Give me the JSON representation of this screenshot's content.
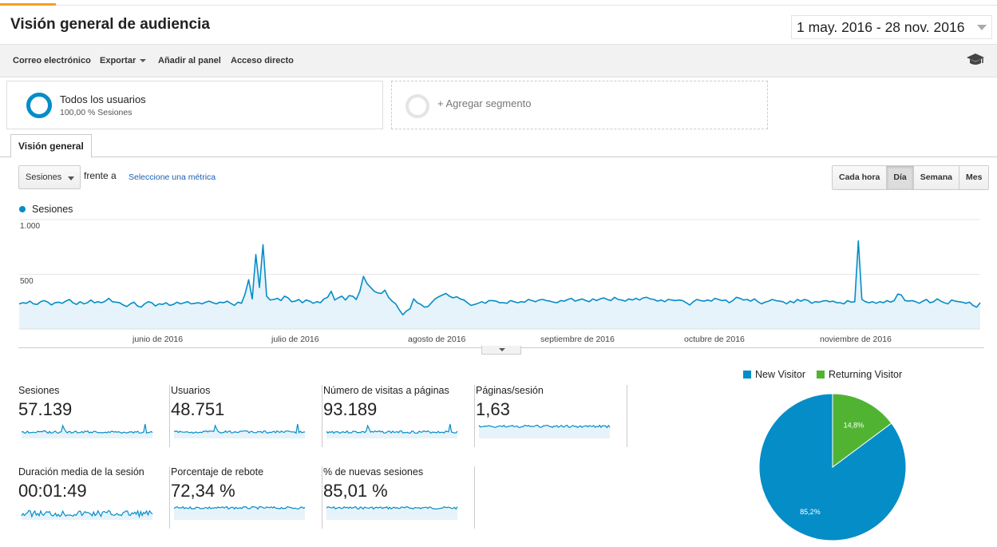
{
  "header": {
    "title": "Visión general de audiencia",
    "date_range": "1 may. 2016 - 28 nov. 2016"
  },
  "toolbar": {
    "email": "Correo electrónico",
    "export": "Exportar",
    "add_to_dashboard": "Añadir al panel",
    "shortcut": "Acceso directo",
    "help_icon": "graduation-cap-icon"
  },
  "segments": {
    "all_users_title": "Todos los usuarios",
    "all_users_sub": "100,00 % Sesiones",
    "add_segment": "+ Agregar segmento"
  },
  "tabs": [
    "Visión general"
  ],
  "controls": {
    "metric_select": "Sesiones",
    "versus": "frente a",
    "select_metric": "Seleccione una métrica",
    "granularity": [
      "Cada hora",
      "Día",
      "Semana",
      "Mes"
    ],
    "granularity_active": "Día"
  },
  "colors": {
    "primary": "#058dc7",
    "secondary": "#50b432",
    "area_fill": "#e6f3fa"
  },
  "chart_data": {
    "type": "area",
    "legend": "Sesiones",
    "y_ticks": [
      "1.000",
      "500"
    ],
    "ylim": [
      0,
      1000
    ],
    "x_ticks": [
      "junio de 2016",
      "julio de 2016",
      "agosto de 2016",
      "septiembre de 2016",
      "octubre de 2016",
      "noviembre de 2016"
    ],
    "x_start": "2016-05-01",
    "x_end": "2016-11-28",
    "series": [
      {
        "name": "Sesiones",
        "values": [
          230,
          240,
          235,
          255,
          230,
          225,
          250,
          260,
          245,
          220,
          240,
          245,
          235,
          255,
          270,
          240,
          225,
          250,
          230,
          240,
          265,
          240,
          250,
          240,
          255,
          280,
          250,
          245,
          240,
          220,
          205,
          230,
          245,
          210,
          200,
          230,
          250,
          240,
          210,
          230,
          225,
          240,
          215,
          225,
          245,
          230,
          240,
          250,
          230,
          235,
          240,
          230,
          245,
          255,
          240,
          230,
          245,
          240,
          255,
          235,
          215,
          245,
          235,
          320,
          450,
          275,
          680,
          380,
          770,
          300,
          265,
          270,
          280,
          260,
          300,
          285,
          250,
          255,
          270,
          240,
          265,
          255,
          235,
          250,
          240,
          275,
          290,
          345,
          265,
          285,
          300,
          265,
          305,
          300,
          270,
          345,
          480,
          415,
          380,
          345,
          330,
          325,
          355,
          290,
          255,
          230,
          175,
          130,
          165,
          185,
          275,
          240,
          225,
          200,
          205,
          240,
          275,
          295,
          310,
          325,
          300,
          285,
          295,
          275,
          265,
          240,
          215,
          225,
          235,
          250,
          235,
          260,
          260,
          255,
          240,
          240,
          235,
          260,
          250,
          240,
          250,
          245,
          270,
          260,
          250,
          265,
          270,
          260,
          255,
          245,
          240,
          260,
          255,
          270,
          280,
          255,
          265,
          275,
          260,
          250,
          275,
          260,
          275,
          285,
          270,
          260,
          290,
          270,
          265,
          255,
          275,
          265,
          280,
          265,
          285,
          290,
          275,
          270,
          255,
          265,
          250,
          270,
          265,
          260,
          265,
          260,
          240,
          220,
          250,
          270,
          260,
          255,
          265,
          255,
          280,
          270,
          260,
          265,
          240,
          260,
          290,
          280,
          265,
          270,
          255,
          275,
          250,
          230,
          245,
          255,
          270,
          260,
          255,
          250,
          230,
          255,
          240,
          270,
          255,
          270,
          260,
          235,
          250,
          245,
          255,
          260,
          250,
          255,
          240,
          240,
          230,
          260,
          245,
          250,
          805,
          270,
          250,
          240,
          250,
          235,
          250,
          240,
          260,
          245,
          260,
          320,
          310,
          260,
          255,
          260,
          250,
          235,
          255,
          270,
          240,
          250,
          275,
          255,
          240,
          230,
          265,
          255,
          250,
          245,
          235,
          245,
          215,
          200,
          240
        ]
      }
    ]
  },
  "metrics": [
    {
      "label": "Sesiones",
      "value": "57.139"
    },
    {
      "label": "Usuarios",
      "value": "48.751"
    },
    {
      "label": "Número de visitas a páginas",
      "value": "93.189"
    },
    {
      "label": "Páginas/sesión",
      "value": "1,63"
    },
    {
      "label": "Duración media de la sesión",
      "value": "00:01:49"
    },
    {
      "label": "Porcentaje de rebote",
      "value": "72,34 %"
    },
    {
      "label": "% de nuevas sesiones",
      "value": "85,01 %"
    }
  ],
  "pie": {
    "type": "pie",
    "legend": [
      "New Visitor",
      "Returning Visitor"
    ],
    "slices": [
      {
        "name": "New Visitor",
        "value": 85.2,
        "label": "85,2%",
        "color": "#058dc7"
      },
      {
        "name": "Returning Visitor",
        "value": 14.8,
        "label": "14,8%",
        "color": "#50b432"
      }
    ]
  }
}
